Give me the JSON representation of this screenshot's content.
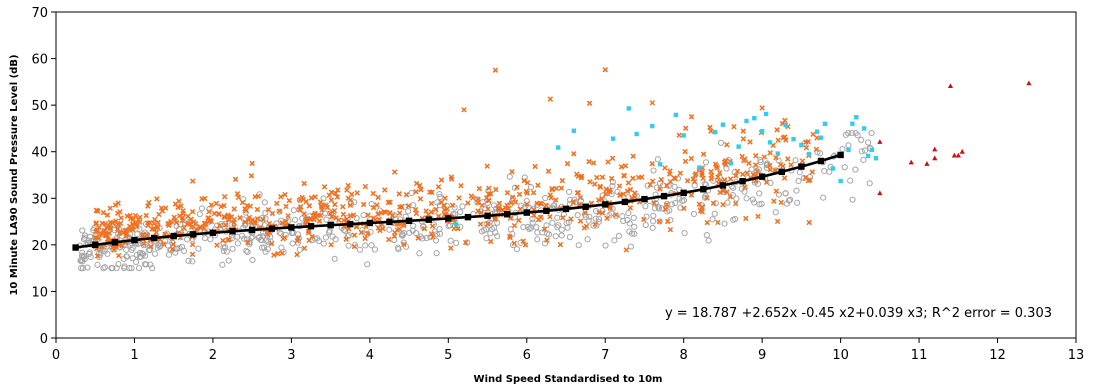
{
  "chart_data": {
    "type": "scatter",
    "title": "",
    "xlabel": "Wind Speed Standardised to 10m",
    "ylabel": "10 Minute LA90 Sound Pressure Level (dB)",
    "xlim": [
      0,
      13
    ],
    "ylim": [
      0,
      70
    ],
    "xticks": [
      "0",
      "1",
      "2",
      "3",
      "4",
      "5",
      "6",
      "7",
      "8",
      "9",
      "10",
      "11",
      "12",
      "13"
    ],
    "yticks": [
      "0",
      "10",
      "20",
      "30",
      "40",
      "50",
      "60",
      "70"
    ],
    "grid": false,
    "legend": "none",
    "annotation": "y = 18.787 +2.652x -0.45 x2+0.039 x3; R^2 error = 0.303",
    "colors": {
      "grey_circles": "#a6a6a6",
      "orange_crosses": "#f07020",
      "cyan_squares": "#33ccee",
      "red_triangles": "#cc1111",
      "fit_line": "#000000"
    },
    "fit_coefficients": [
      18.787,
      2.652,
      -0.45,
      0.039
    ],
    "fit_x": [
      0.25,
      0.5,
      0.75,
      1.0,
      1.25,
      1.5,
      1.75,
      2.0,
      2.25,
      2.5,
      2.75,
      3.0,
      3.25,
      3.5,
      3.75,
      4.0,
      4.25,
      4.5,
      4.75,
      5.0,
      5.25,
      5.5,
      5.75,
      6.0,
      6.25,
      6.5,
      6.75,
      7.0,
      7.25,
      7.5,
      7.75,
      8.0,
      8.25,
      8.5,
      8.75,
      9.0,
      9.25,
      9.5,
      9.75,
      10.0
    ],
    "clouds": [
      {
        "marker": "circle",
        "color": "grey_circles",
        "seed": 11,
        "count": 650,
        "x": [
          0.3,
          10.4
        ],
        "base_offset": -1.0,
        "spread": 4.5,
        "spread_growth": 0.25,
        "ymin": 15,
        "ymax": 44
      },
      {
        "marker": "x",
        "color": "orange_crosses",
        "seed": 29,
        "count": 700,
        "x": [
          0.5,
          9.7
        ],
        "base_offset": 2.5,
        "spread": 4.0,
        "spread_growth": 0.6,
        "ymin": 17,
        "ymax": 52
      }
    ],
    "series": [
      {
        "marker": "x",
        "color": "orange_crosses",
        "x": [
          5.6,
          7.0,
          6.3,
          6.8,
          7.6,
          5.2,
          8.1,
          9.0,
          2.5,
          9.6
        ],
        "y": [
          57.5,
          57.6,
          51.3,
          50.4,
          50.5,
          49.0,
          47.5,
          49.4,
          37.5,
          24.8
        ]
      },
      {
        "marker": "square",
        "color": "cyan_squares",
        "x": [
          7.3,
          7.6,
          7.9,
          8.0,
          8.4,
          8.5,
          8.7,
          8.8,
          8.9,
          9.0,
          9.1,
          9.2,
          9.3,
          9.4,
          9.6,
          9.7,
          9.8,
          9.9,
          10.0,
          10.1,
          10.2,
          10.3,
          10.4,
          10.45,
          7.4,
          7.7,
          8.2,
          8.6,
          9.05,
          9.5,
          9.75,
          10.15,
          10.35,
          6.6,
          7.1,
          6.4,
          5.1
        ],
        "y": [
          49.3,
          45.5,
          47.9,
          43.5,
          44.2,
          45.8,
          41.1,
          46.6,
          47.2,
          44.4,
          42.0,
          39.6,
          45.7,
          42.7,
          39.5,
          44.3,
          46.0,
          36.4,
          33.7,
          40.4,
          47.4,
          45.0,
          40.4,
          38.6,
          43.8,
          37.3,
          36.6,
          37.5,
          48.1,
          41.4,
          43.0,
          46.0,
          39.1,
          44.5,
          42.8,
          40.9,
          24.4
        ]
      },
      {
        "marker": "triangle",
        "color": "red_triangles",
        "x": [
          10.5,
          10.5,
          10.9,
          11.1,
          11.2,
          11.2,
          11.4,
          11.45,
          11.5,
          11.55,
          12.4
        ],
        "y": [
          42.1,
          31.1,
          37.7,
          37.4,
          38.6,
          40.5,
          54.1,
          39.2,
          39.2,
          40.0,
          54.7
        ]
      }
    ]
  }
}
